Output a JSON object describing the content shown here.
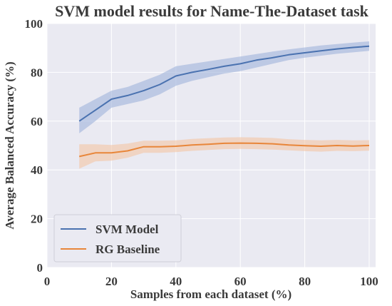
{
  "chart_data": {
    "type": "line",
    "title": "SVM model results for Name-The-Dataset task",
    "xlabel": "Samples from each dataset (%)",
    "ylabel": "Average Balanced Accuracy (%)",
    "xlim": [
      0,
      102
    ],
    "ylim": [
      0,
      100
    ],
    "xticks": [
      0,
      20,
      40,
      60,
      80,
      100
    ],
    "yticks": [
      0,
      20,
      40,
      60,
      80,
      100
    ],
    "grid": true,
    "legend_position": "bottom-left",
    "x": [
      10,
      15,
      20,
      25,
      30,
      35,
      40,
      45,
      50,
      55,
      60,
      65,
      70,
      75,
      80,
      85,
      90,
      95,
      100
    ],
    "series": [
      {
        "name": "SVM Model",
        "color": "#4a72b0",
        "band_color": "#9fb2db",
        "values": [
          60.0,
          64.5,
          69.0,
          70.5,
          72.5,
          75.0,
          78.5,
          80.0,
          81.2,
          82.5,
          83.5,
          85.0,
          86.0,
          87.2,
          88.0,
          88.8,
          89.6,
          90.2,
          90.7
        ],
        "lower": [
          55.0,
          60.0,
          65.5,
          67.0,
          68.5,
          71.0,
          74.5,
          76.5,
          78.0,
          79.5,
          80.5,
          82.0,
          83.5,
          85.0,
          86.0,
          86.8,
          87.6,
          88.2,
          88.8
        ],
        "upper": [
          65.5,
          69.0,
          72.5,
          74.0,
          76.5,
          79.0,
          82.5,
          83.5,
          84.5,
          85.5,
          86.5,
          87.5,
          88.5,
          89.4,
          90.2,
          91.0,
          91.6,
          92.2,
          92.7
        ]
      },
      {
        "name": "RG Baseline",
        "color": "#e8863a",
        "band_color": "#f3c4a3",
        "values": [
          45.5,
          47.0,
          47.0,
          47.8,
          49.5,
          49.5,
          49.7,
          50.2,
          50.5,
          50.9,
          51.0,
          50.9,
          50.7,
          50.2,
          49.9,
          49.7,
          50.0,
          49.8,
          50.0
        ],
        "lower": [
          40.5,
          43.5,
          43.8,
          45.0,
          47.0,
          47.0,
          47.3,
          47.8,
          48.2,
          48.5,
          48.6,
          48.5,
          48.3,
          48.0,
          47.7,
          47.5,
          47.8,
          47.7,
          47.9
        ],
        "upper": [
          50.5,
          50.5,
          50.2,
          50.8,
          52.0,
          52.0,
          52.1,
          52.7,
          53.0,
          53.3,
          53.4,
          53.3,
          53.1,
          52.6,
          52.3,
          52.1,
          52.3,
          52.1,
          52.2
        ]
      }
    ]
  }
}
